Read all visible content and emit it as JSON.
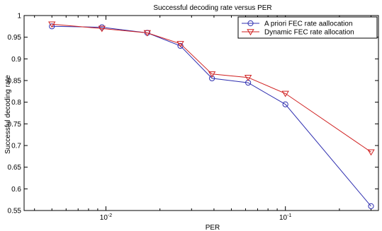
{
  "chart_data": {
    "type": "line",
    "title": "Successful decoding rate versus PER",
    "xlabel": "PER",
    "ylabel": "Successful decoding rate",
    "x_scale": "log",
    "xlim": [
      0.0035,
      0.33
    ],
    "ylim": [
      0.55,
      1.0
    ],
    "x_ticks": [
      {
        "value": 0.01,
        "base": "10",
        "exp": "-2"
      },
      {
        "value": 0.1,
        "base": "10",
        "exp": "-1"
      }
    ],
    "y_ticks": [
      {
        "value": 0.55,
        "label": "0.55"
      },
      {
        "value": 0.6,
        "label": "0.6"
      },
      {
        "value": 0.65,
        "label": "0.65"
      },
      {
        "value": 0.7,
        "label": "0.7"
      },
      {
        "value": 0.75,
        "label": "0.75"
      },
      {
        "value": 0.8,
        "label": "0.8"
      },
      {
        "value": 0.85,
        "label": "0.85"
      },
      {
        "value": 0.9,
        "label": "0.9"
      },
      {
        "value": 0.95,
        "label": "0.95"
      },
      {
        "value": 1.0,
        "label": "1"
      }
    ],
    "grid": false,
    "legend_position": "top-right",
    "series": [
      {
        "name": "A priori FEC rate aallocation",
        "color": "#2f2fb0",
        "marker": "circle",
        "x": [
          0.005,
          0.0095,
          0.017,
          0.026,
          0.039,
          0.062,
          0.1,
          0.3
        ],
        "y": [
          0.975,
          0.973,
          0.96,
          0.93,
          0.855,
          0.845,
          0.795,
          0.56
        ]
      },
      {
        "name": "Dynamic FEC rate allocation",
        "color": "#d02020",
        "marker": "triangle-down",
        "x": [
          0.005,
          0.0095,
          0.017,
          0.026,
          0.039,
          0.062,
          0.1,
          0.3
        ],
        "y": [
          0.98,
          0.97,
          0.96,
          0.935,
          0.865,
          0.857,
          0.82,
          0.685
        ]
      }
    ]
  }
}
